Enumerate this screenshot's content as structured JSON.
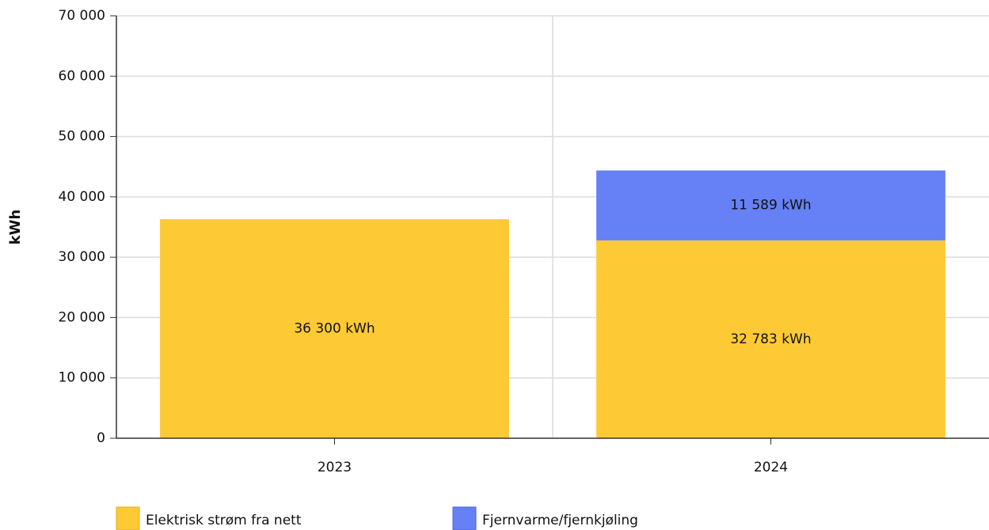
{
  "chart_data": {
    "type": "stacked_bar",
    "y_label": "kWh",
    "categories": [
      "2023",
      "2024"
    ],
    "series": [
      {
        "name": "Elektrisk strøm fra nett",
        "color": "#fdca35",
        "values": [
          36300,
          32783
        ],
        "value_labels": [
          "36 300 kWh",
          "32 783 kWh"
        ]
      },
      {
        "name": "Fjernvarme/fjernkjøling",
        "color": "#6680f5",
        "values": [
          null,
          11589
        ],
        "value_labels": [
          null,
          "11 589 kWh"
        ]
      }
    ],
    "ylim": [
      0,
      70000
    ],
    "yticks": [
      0,
      {
        "value": 10000,
        "label": "10 000"
      },
      {
        "value": 20000,
        "label": "20 000"
      },
      {
        "value": 30000,
        "label": "30 000"
      },
      {
        "value": 40000,
        "label": "40 000"
      },
      {
        "value": 50000,
        "label": "50 000"
      },
      {
        "value": 60000,
        "label": "60 000"
      },
      {
        "value": 70000,
        "label": "70 000"
      }
    ],
    "grid": true
  }
}
